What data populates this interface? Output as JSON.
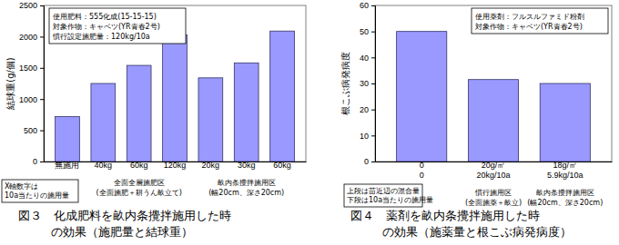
{
  "chart_data": [
    {
      "type": "bar",
      "title": "図３　化成肥料を畝内条攪拌施用した時\nの効果（施肥量と結球重）",
      "y_label": "結球重(g/個)",
      "categories": [
        "無施用",
        "40kg",
        "60kg",
        "120kg",
        "20kg",
        "30kg",
        "60kg"
      ],
      "values": [
        720,
        1250,
        1540,
        2030,
        1340,
        1580,
        2090
      ],
      "color": "#9999ff",
      "ylim": [
        0,
        2500
      ],
      "yticks": [
        0,
        500,
        1000,
        1500,
        2000,
        2500
      ],
      "grid": false,
      "category_groups": [
        {
          "label": "全面全層施肥区\n(全面施肥＋耕うん畝立て)",
          "first": 1,
          "last": 3
        },
        {
          "label": "畝内条攪拌施用区\n(幅20cm、深さ20cm)",
          "first": 4,
          "last": 6
        }
      ],
      "annotations": [
        "使用肥料：555化成(15-15-15)",
        "対象作物：キャベツ(YR青春2号)",
        "慣行設定施肥量：120kg/10a"
      ],
      "note": "X軸数字は\n10a当たりの施用量"
    },
    {
      "type": "bar",
      "title": "図４　薬剤を畝内条攪拌施用した時\nの効果（施薬量と根こぶ病発病度）",
      "y_label": "根こぶ病発病度",
      "categories": [
        "0\n0",
        "20g/㎡\n20kg/10a",
        "18g/㎡\n5.9kg/10a"
      ],
      "values": [
        50,
        31.5,
        30
      ],
      "color": "#9999ff",
      "ylim": [
        0,
        60
      ],
      "yticks": [
        0,
        10,
        20,
        30,
        40,
        50,
        60
      ],
      "grid": false,
      "category_groups": [
        {
          "label": "慣行施用区\n(全面施薬＋畝立)",
          "first": 1,
          "last": 1
        },
        {
          "label": "畝内条攪拌施用区\n(幅20cm、深さ20cm)",
          "first": 2,
          "last": 2
        }
      ],
      "annotations": [
        "使用薬剤：フルスルファミド粉剤",
        "対象作物：キャベツ(YR青春2号)"
      ],
      "note": "上段は苗近辺の混合量\n下段は10a当たりの施用量"
    }
  ]
}
